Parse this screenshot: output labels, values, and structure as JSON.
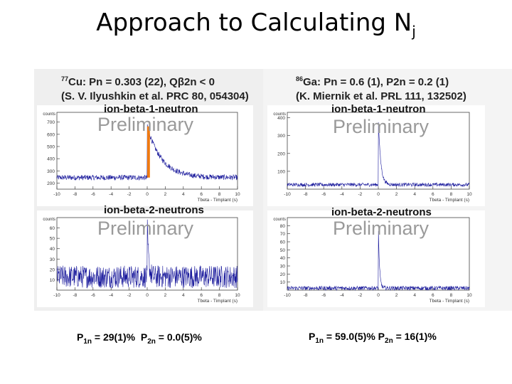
{
  "slide": {
    "title_main": "Approach to Calculating N",
    "title_sub": "j"
  },
  "left": {
    "isotope_mass": "77",
    "ref_line1": "Cu: Pn = 0.303 (22), Qβ2n < 0",
    "ref_line2": "(S. V. Ilyushkin et al. PRC 80, 054304)",
    "result": {
      "p1n_label": "P",
      "p1n_sub": "1n",
      "p1n_value": " = 29(1)%",
      "p2n_label": "P",
      "p2n_sub": "2n",
      "p2n_value": " = 0.0(5)%"
    }
  },
  "right": {
    "isotope_mass": "86",
    "ref_line1": "Ga: Pn = 0.6 (1), P2n = 0.2 (1)",
    "ref_line2": "(K. Miernik et al. PRL 111, 132502)",
    "result": {
      "p1n_label": "P",
      "p1n_sub": "1n",
      "p1n_value": " = 59.0(5)%",
      "p2n_label": "P",
      "p2n_sub": "2n",
      "p2n_value": " = 16(1)%"
    }
  },
  "watermark": "Preliminary",
  "colors": {
    "trace": "#1a1a9c",
    "highlight": "#f07a10",
    "axis": "#444444"
  },
  "chart_data": [
    {
      "type": "line",
      "title": "ion-beta-1-neutron",
      "xlabel": "Tbeta - Timplant (s)",
      "ylabel": "counts",
      "xlim": [
        -10,
        10
      ],
      "ylim": [
        150,
        780
      ],
      "xticks": [
        -10,
        -8,
        -6,
        -4,
        -2,
        0,
        2,
        4,
        6,
        8,
        10
      ],
      "yticks": [
        200,
        300,
        400,
        500,
        600,
        700
      ],
      "series": [
        {
          "profile": "decay",
          "baseline": 245,
          "noise": 22,
          "peak": 420,
          "tau": 1.6
        }
      ],
      "highlight_bar": {
        "x": [
          0,
          0.3
        ],
        "y": [
          245,
          665
        ]
      }
    },
    {
      "type": "line",
      "title": "ion-beta-2-neutrons",
      "xlabel": "Tbeta - Timplant (s)",
      "ylabel": "counts",
      "xlim": [
        -10,
        10
      ],
      "ylim": [
        0,
        70
      ],
      "xticks": [
        -10,
        -8,
        -6,
        -4,
        -2,
        0,
        2,
        4,
        6,
        8,
        10
      ],
      "yticks": [
        10,
        20,
        30,
        40,
        50,
        60
      ],
      "series": [
        {
          "profile": "flat",
          "baseline": 13,
          "noise": 11,
          "peak": 50,
          "tau": 0.15
        }
      ]
    },
    {
      "type": "line",
      "title": "ion-beta-1-neutron",
      "xlabel": "Tbeta - Timplant (s)",
      "ylabel": "counts",
      "xlim": [
        -10,
        10
      ],
      "ylim": [
        0,
        430
      ],
      "xticks": [
        -10,
        -8,
        -6,
        -4,
        -2,
        0,
        2,
        4,
        6,
        8,
        10
      ],
      "yticks": [
        100,
        200,
        300,
        400
      ],
      "series": [
        {
          "profile": "spike",
          "baseline": 25,
          "noise": 10,
          "peak": 380,
          "tau": 0.25
        }
      ]
    },
    {
      "type": "line",
      "title": "ion-beta-2-neutrons",
      "xlabel": "Tbeta - Timplant (s)",
      "ylabel": "counts",
      "xlim": [
        -10,
        10
      ],
      "ylim": [
        0,
        90
      ],
      "xticks": [
        -10,
        -8,
        -6,
        -4,
        -2,
        0,
        2,
        4,
        6,
        8,
        10
      ],
      "yticks": [
        10,
        20,
        30,
        40,
        50,
        60,
        70,
        80
      ],
      "series": [
        {
          "profile": "spike",
          "baseline": 2.5,
          "noise": 2.5,
          "peak": 82,
          "tau": 0.12
        }
      ]
    }
  ]
}
